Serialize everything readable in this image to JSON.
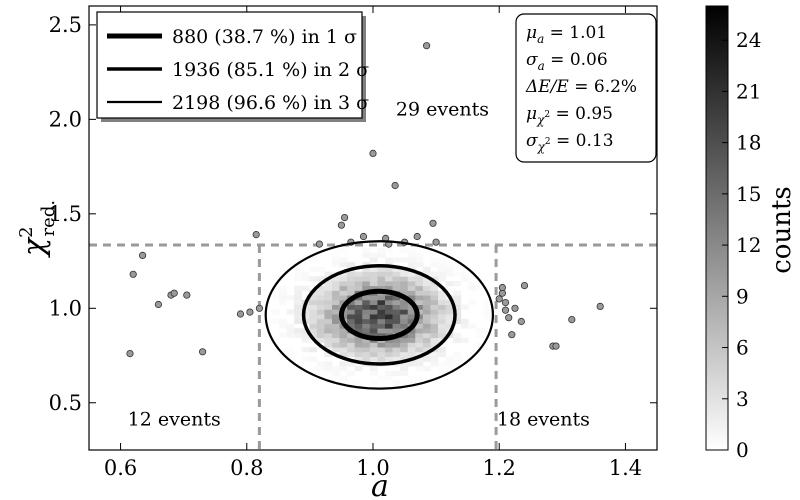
{
  "chart_data": {
    "type": "scatter",
    "xlabel": "a",
    "ylabel": "χ²red.",
    "ylabel_main": "χ",
    "ylabel_sup": "2",
    "ylabel_sub": "red.",
    "xlim": [
      0.55,
      1.45
    ],
    "ylim": [
      0.25,
      2.6
    ],
    "x_ticks": [
      "0.6",
      "0.8",
      "1.0",
      "1.2",
      "1.4"
    ],
    "x_tick_values": [
      0.6,
      0.8,
      1.0,
      1.2,
      1.4
    ],
    "y_ticks": [
      "0.5",
      "1.0",
      "1.5",
      "2.0",
      "2.5"
    ],
    "y_tick_values": [
      0.5,
      1.0,
      1.5,
      2.0,
      2.5
    ],
    "cuts": {
      "chi2_cut": 1.335,
      "a_low": 0.82,
      "a_high": 1.195
    },
    "sigma_ellipses": [
      {
        "label": "880 (38.7 %) in 1 σ",
        "cx": 1.01,
        "cy": 0.965,
        "rx": 0.06,
        "ry": 0.125,
        "lw": 5
      },
      {
        "label": "1936 (85.1 %) in 2 σ",
        "cx": 1.01,
        "cy": 0.965,
        "rx": 0.12,
        "ry": 0.26,
        "lw": 3.5
      },
      {
        "label": "2198 (96.6 %) in 3 σ",
        "cx": 1.01,
        "cy": 0.965,
        "rx": 0.18,
        "ry": 0.39,
        "lw": 2.2
      }
    ],
    "legend": [
      {
        "label": "880 (38.7 %) in 1 σ",
        "lw": 5
      },
      {
        "label": "1936 (85.1 %) in 2 σ",
        "lw": 3.5
      },
      {
        "label": "2198 (96.6 %) in 3 σ",
        "lw": 2.2
      }
    ],
    "stats": [
      {
        "label": "μa = 1.01",
        "sym": "μ",
        "sub": "a",
        "sup": "",
        "value": "= 1.01"
      },
      {
        "label": "σa = 0.06",
        "sym": "σ",
        "sub": "a",
        "sup": "",
        "value": "= 0.06"
      },
      {
        "label": "ΔE/E = 6.2%",
        "sym": "ΔE/E",
        "sub": "",
        "sup": "",
        "value": "= 6.2%"
      },
      {
        "label": "μχ² = 0.95",
        "sym": "μ",
        "sub": "χ",
        "sup": "2",
        "value": "= 0.95"
      },
      {
        "label": "σχ² = 0.13",
        "sym": "σ",
        "sub": "χ",
        "sup": "2",
        "value": "= 0.13"
      }
    ],
    "region_labels": [
      {
        "text": "29 events",
        "x": 1.11,
        "y": 2.02
      },
      {
        "text": "12 events",
        "x": 0.685,
        "y": 0.38
      },
      {
        "text": "18 events",
        "x": 1.27,
        "y": 0.38
      }
    ],
    "outliers": [
      [
        0.615,
        0.76
      ],
      [
        0.62,
        1.18
      ],
      [
        0.635,
        1.28
      ],
      [
        0.66,
        1.02
      ],
      [
        0.68,
        1.07
      ],
      [
        0.685,
        1.08
      ],
      [
        0.705,
        1.07
      ],
      [
        0.73,
        0.77
      ],
      [
        0.79,
        0.97
      ],
      [
        0.805,
        0.98
      ],
      [
        0.815,
        1.39
      ],
      [
        0.82,
        1.0
      ],
      [
        0.915,
        1.34
      ],
      [
        0.95,
        1.44
      ],
      [
        0.955,
        1.48
      ],
      [
        0.965,
        1.35
      ],
      [
        0.985,
        1.38
      ],
      [
        1.0,
        1.82
      ],
      [
        1.02,
        1.37
      ],
      [
        1.025,
        1.34
      ],
      [
        1.035,
        1.65
      ],
      [
        1.05,
        1.35
      ],
      [
        1.07,
        1.38
      ],
      [
        1.085,
        2.39
      ],
      [
        1.095,
        1.45
      ],
      [
        1.1,
        1.35
      ],
      [
        1.2,
        1.05
      ],
      [
        1.205,
        1.08
      ],
      [
        1.205,
        1.11
      ],
      [
        1.21,
        0.99
      ],
      [
        1.215,
        0.95
      ],
      [
        1.22,
        0.86
      ],
      [
        1.225,
        1.0
      ],
      [
        1.21,
        1.03
      ],
      [
        1.235,
        0.93
      ],
      [
        1.24,
        1.12
      ],
      [
        1.285,
        0.8
      ],
      [
        1.29,
        0.8
      ],
      [
        1.315,
        0.94
      ],
      [
        1.36,
        1.01
      ]
    ],
    "colorbar": {
      "label": "counts",
      "min": 0,
      "max": 26,
      "ticks": [
        "0",
        "3",
        "6",
        "9",
        "12",
        "15",
        "18",
        "21",
        "24"
      ],
      "tick_values": [
        0,
        3,
        6,
        9,
        12,
        15,
        18,
        21,
        24
      ]
    }
  }
}
